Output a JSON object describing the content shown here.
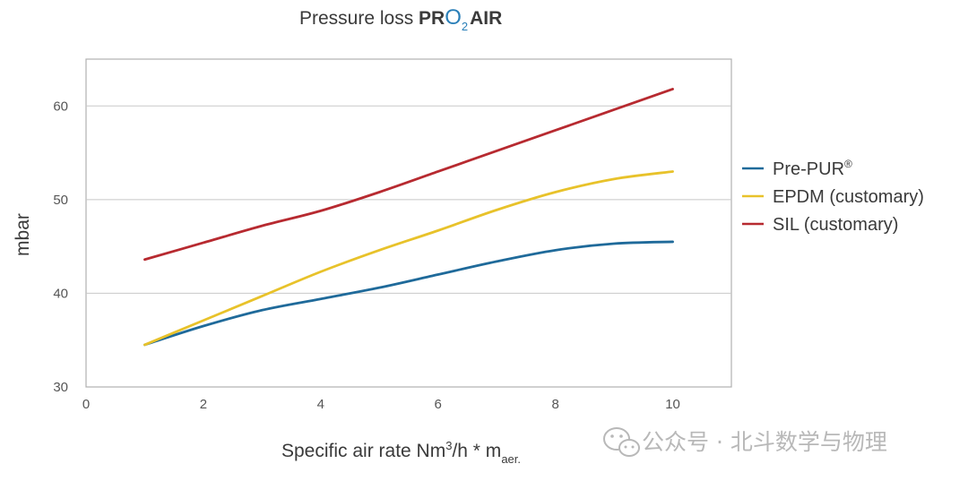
{
  "chart_data": {
    "type": "line",
    "title": {
      "prefix": "Pressure loss ",
      "brand_pr": "PR",
      "brand_o": "O",
      "brand_sub": "2",
      "brand_air": "AIR"
    },
    "xlabel": {
      "main": "Specific air rate Nm",
      "sup": "3",
      "mid": "/h * m",
      "sub": "aer."
    },
    "ylabel": "mbar",
    "xlim": [
      0,
      11
    ],
    "ylim": [
      30,
      65
    ],
    "xticks": [
      0,
      2,
      4,
      6,
      8,
      10
    ],
    "yticks": [
      30,
      40,
      50,
      60
    ],
    "grid": "horizontal",
    "legend_position": "right",
    "series": [
      {
        "name": "Pre-PUR",
        "name_sup": "®",
        "color": "#1f6a9a",
        "x": [
          1,
          2,
          3,
          4,
          5,
          6,
          7,
          8,
          9,
          10
        ],
        "y": [
          34.5,
          36.5,
          38.2,
          39.4,
          40.6,
          42.0,
          43.4,
          44.6,
          45.3,
          45.5
        ]
      },
      {
        "name": "EPDM (customary)",
        "name_sup": "",
        "color": "#e8c22a",
        "x": [
          1,
          2,
          3,
          4,
          5,
          6,
          7,
          8,
          9,
          10
        ],
        "y": [
          34.5,
          37.1,
          39.7,
          42.3,
          44.6,
          46.7,
          48.9,
          50.8,
          52.2,
          53.0
        ]
      },
      {
        "name": "SIL (customary)",
        "name_sup": "",
        "color": "#b72a30",
        "x": [
          1,
          2,
          3,
          4,
          5,
          6,
          7,
          8,
          9,
          10
        ],
        "y": [
          43.6,
          45.4,
          47.2,
          48.8,
          50.8,
          53.0,
          55.2,
          57.4,
          59.6,
          61.8
        ]
      }
    ]
  },
  "watermark": {
    "text": "公众号 · 北斗数学与物理",
    "icon": "wechat-icon"
  }
}
